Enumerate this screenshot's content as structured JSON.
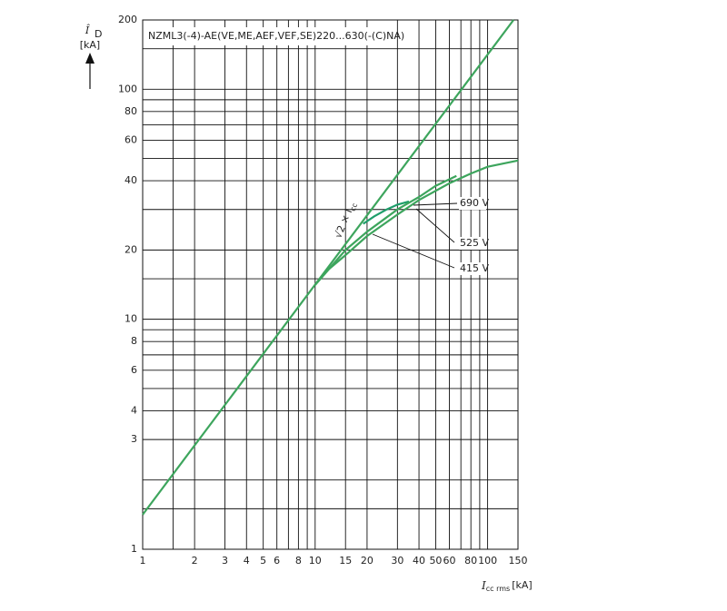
{
  "chart_data": {
    "type": "line",
    "title": "NZML3(-4)-AE(VE,ME,AEF,VEF,SE)220...630(-(C)NA)",
    "x_label": {
      "symbol": "I",
      "sub": "cc rms",
      "unit": "[kA]"
    },
    "y_label": {
      "symbol": "Î",
      "sub": "D",
      "unit": "[kA]"
    },
    "xscale": "log",
    "yscale": "log",
    "xlim": [
      1,
      150
    ],
    "ylim": [
      1,
      200
    ],
    "xticks": [
      1,
      2,
      3,
      4,
      5,
      6,
      8,
      10,
      15,
      20,
      30,
      40,
      50,
      60,
      80,
      100,
      150
    ],
    "yticks": [
      1,
      3,
      4,
      6,
      8,
      10,
      20,
      40,
      60,
      80,
      100,
      200
    ],
    "xgrid": [
      1,
      1.5,
      2,
      3,
      4,
      5,
      6,
      7,
      8,
      9,
      10,
      15,
      20,
      30,
      40,
      50,
      60,
      70,
      80,
      90,
      100,
      150
    ],
    "ygrid": [
      1,
      1.5,
      2,
      3,
      4,
      5,
      6,
      7,
      8,
      9,
      10,
      15,
      20,
      30,
      40,
      50,
      60,
      70,
      80,
      90,
      100,
      150,
      200
    ],
    "series": [
      {
        "name": "√2 × I",
        "name_sub": "cc",
        "color": "#3da55d",
        "x": [
          1,
          141.4
        ],
        "values": [
          1.414,
          200
        ]
      },
      {
        "name": "690 V",
        "color": "#1f9e6b",
        "x": [
          19,
          22,
          26,
          30,
          35
        ],
        "values": [
          26,
          28,
          30,
          31.5,
          32.5
        ]
      },
      {
        "name": "525 V",
        "color": "#3da55d",
        "x": [
          10,
          12,
          15,
          20,
          30,
          40,
          50,
          66
        ],
        "values": [
          14.1,
          16.5,
          20,
          24,
          30,
          34,
          38,
          42
        ]
      },
      {
        "name": "415 V",
        "color": "#3da55d",
        "x": [
          10,
          12,
          15,
          20,
          30,
          40,
          60,
          80,
          100,
          150
        ],
        "values": [
          14.1,
          16.5,
          19,
          23,
          28.5,
          33,
          39,
          43,
          46,
          49
        ]
      }
    ]
  }
}
